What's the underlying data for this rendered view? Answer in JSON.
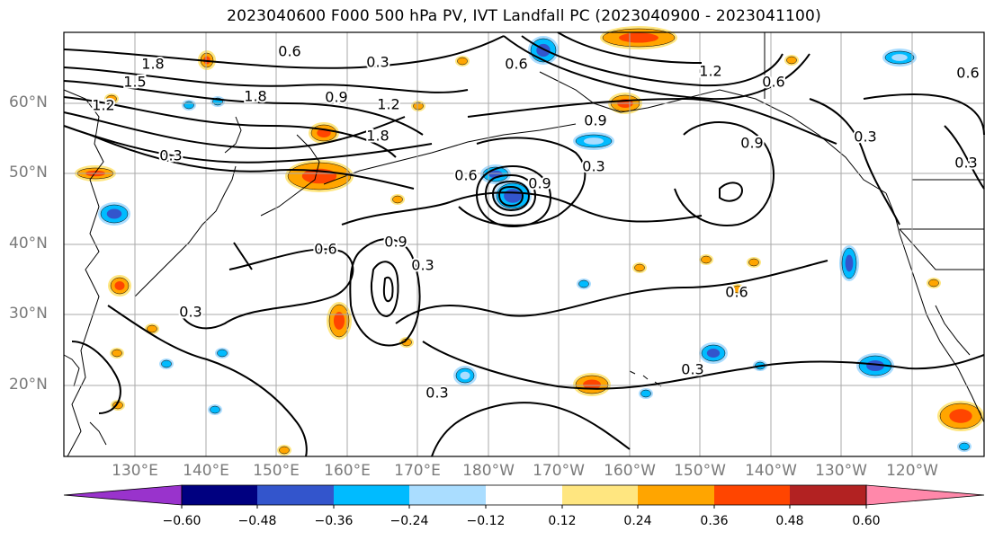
{
  "title": "2023040600 F000 500 hPa PV, IVT Landfall PC (2023040900 - 2023041100)",
  "lat_labels": [
    "60°N",
    "50°N",
    "40°N",
    "30°N",
    "20°N"
  ],
  "lon_labels": [
    "130°E",
    "140°E",
    "150°E",
    "160°E",
    "170°E",
    "180°W",
    "170°W",
    "160°W",
    "150°W",
    "140°W",
    "130°W",
    "120°W"
  ],
  "colorbar": {
    "tick_labels": [
      "−0.60",
      "−0.48",
      "−0.36",
      "−0.24",
      "−0.12",
      "0.12",
      "0.24",
      "0.36",
      "0.48",
      "0.60"
    ],
    "colors": [
      "#9933cc",
      "#000080",
      "#3355cc",
      "#00bbff",
      "#aaddff",
      "#ffffff",
      "#ffe680",
      "#ffa500",
      "#ff4500",
      "#b22222",
      "#ff88aa"
    ]
  },
  "contour_labels": [
    "0.6",
    "0.3",
    "1.8",
    "1.5",
    "1.2",
    "1.8",
    "1.2",
    "1.8",
    "0.3",
    "0.9",
    "0.6",
    "0.3",
    "0.9",
    "0.6",
    "0.9",
    "0.6",
    "0.3",
    "1.2",
    "0.6",
    "0.3",
    "0.9",
    "0.6",
    "0.3",
    "0.3",
    "0.3",
    "0.3",
    "0.6",
    "0.9"
  ]
}
